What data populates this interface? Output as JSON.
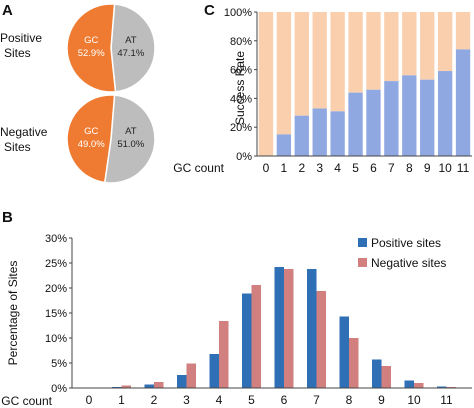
{
  "panels": {
    "a_letter": "A",
    "b_letter": "B",
    "c_letter": "C"
  },
  "colors": {
    "gc_pie": "#ee7b31",
    "at_pie": "#bdbdbd",
    "success": "#90a8e2",
    "fail": "#f9cfae",
    "positive": "#2f6fb5",
    "negative": "#d27f7f",
    "axis": "#444444"
  },
  "chart_data": [
    {
      "type": "pie",
      "row_label_line1": "Positive",
      "row_label_line2": "Sites",
      "slices": [
        {
          "label": "GC",
          "value": 52.9,
          "value_text": "52.9%",
          "color": "#ee7b31"
        },
        {
          "label": "AT",
          "value": 47.1,
          "value_text": "47.1%",
          "color": "#bdbdbd"
        }
      ]
    },
    {
      "type": "pie",
      "row_label_line1": "Negative",
      "row_label_line2": "Sites",
      "slices": [
        {
          "label": "GC",
          "value": 49.0,
          "value_text": "49.0%",
          "color": "#ee7b31"
        },
        {
          "label": "AT",
          "value": 51.0,
          "value_text": "51.0%",
          "color": "#bdbdbd"
        }
      ]
    },
    {
      "type": "bar",
      "stacked": true,
      "ylabel": "Success Rate",
      "xlabel": "GC count",
      "ylim": [
        0,
        100
      ],
      "yticks": [
        0,
        20,
        40,
        60,
        80,
        100
      ],
      "ytick_labels": [
        "0%",
        "20%",
        "40%",
        "60%",
        "80%",
        "100%"
      ],
      "categories": [
        "0",
        "1",
        "2",
        "3",
        "4",
        "5",
        "6",
        "7",
        "8",
        "9",
        "10",
        "11"
      ],
      "series": [
        {
          "values": [
            0,
            15,
            28,
            33,
            31,
            44,
            46,
            52,
            56,
            53,
            59,
            74
          ]
        },
        {
          "values": [
            100,
            85,
            72,
            67,
            69,
            56,
            54,
            48,
            44,
            47,
            41,
            26
          ]
        }
      ]
    },
    {
      "type": "bar",
      "ylabel": "Percentage of Sites",
      "xlabel": "GC count",
      "ylim": [
        0,
        30
      ],
      "yticks": [
        0,
        5,
        10,
        15,
        20,
        25,
        30
      ],
      "ytick_labels": [
        "0%",
        "5%",
        "10%",
        "15%",
        "20%",
        "25%",
        "30%"
      ],
      "categories": [
        "0",
        "1",
        "2",
        "3",
        "4",
        "5",
        "6",
        "7",
        "8",
        "9",
        "10",
        "11"
      ],
      "legend_position": "top-right",
      "series": [
        {
          "name": "Positive sites",
          "color": "#2f6fb5",
          "values": [
            0.05,
            0.2,
            0.7,
            2.6,
            6.8,
            18.9,
            24.2,
            23.8,
            14.3,
            5.7,
            1.5,
            0.3
          ]
        },
        {
          "name": "Negative sites",
          "color": "#d27f7f",
          "values": [
            0.1,
            0.5,
            1.2,
            4.9,
            13.4,
            20.6,
            23.8,
            19.4,
            10.0,
            4.4,
            1.0,
            0.2
          ]
        }
      ]
    }
  ]
}
